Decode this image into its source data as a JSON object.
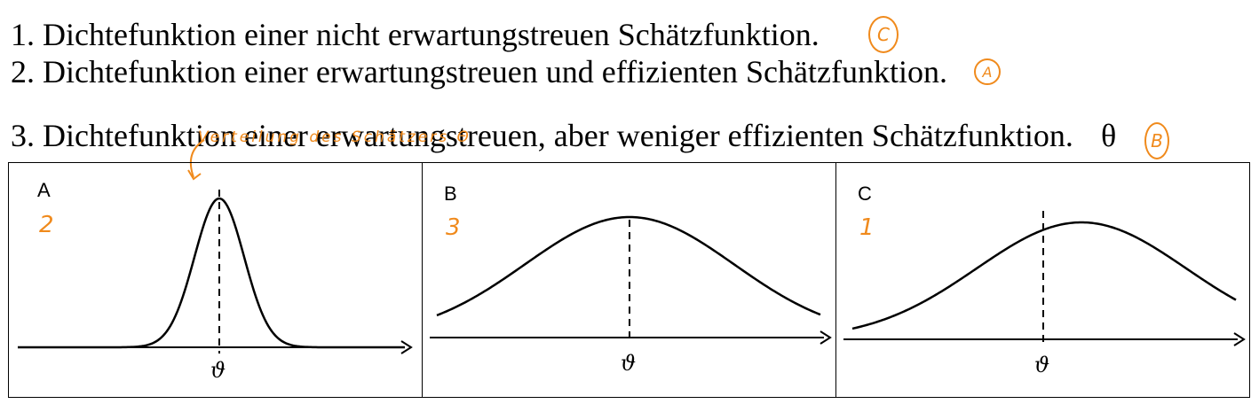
{
  "statements": [
    "1. Dichtefunktion einer nicht erwartungstreuen Schätzfunktion.",
    "2. Dichtefunktion einer erwartungstreuen und effizienten Schätzfunktion.",
    "3. Dichtefunktion einer erwartungstreuen, aber weniger effizienten Schätzfunktion."
  ],
  "theta_symbol": "θ",
  "handwritten": {
    "answers": [
      "C",
      "A",
      "B"
    ],
    "annotation": "Verteilung des Schätzers Θ",
    "panel_ranks": [
      "2",
      "3",
      "1"
    ]
  },
  "panels": [
    {
      "letter": "A",
      "axis_label": "ϑ"
    },
    {
      "letter": "B",
      "axis_label": "ϑ"
    },
    {
      "letter": "C",
      "axis_label": "ϑ"
    }
  ],
  "colors": {
    "handwriting": "#f08a1c",
    "ink": "#000000"
  }
}
